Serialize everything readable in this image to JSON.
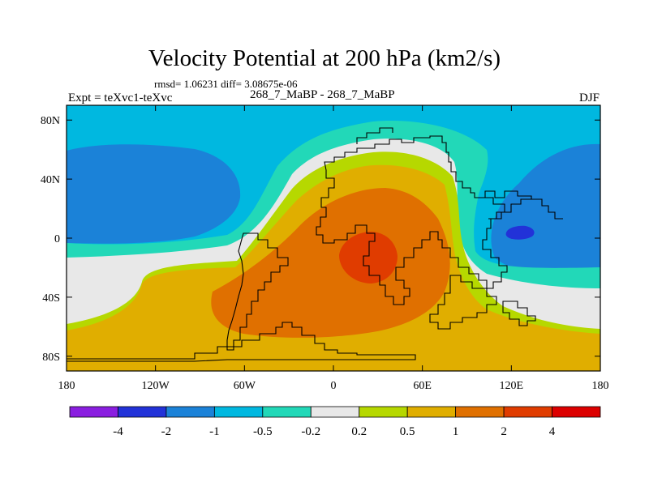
{
  "chart_data": {
    "type": "heatmap",
    "plot_kind": "filled contour map",
    "title": "Velocity Potential at 200 hPa (km2/s)",
    "stats_line": "rmsd= 1.06231 diff= 3.08675e-06",
    "subtitle": "268_7_MaBP - 268_7_MaBP",
    "left_label": "Expt = teXvc1-teXvc",
    "right_label": "DJF",
    "x_range": [
      -180,
      180
    ],
    "y_range": [
      -90,
      90
    ],
    "x_ticks": [
      {
        "value": -180,
        "label": "180"
      },
      {
        "value": -120,
        "label": "120W"
      },
      {
        "value": -60,
        "label": "60W"
      },
      {
        "value": 0,
        "label": "0"
      },
      {
        "value": 60,
        "label": "60E"
      },
      {
        "value": 120,
        "label": "120E"
      },
      {
        "value": 180,
        "label": "180"
      }
    ],
    "y_ticks": [
      {
        "value": 80,
        "label": "80N"
      },
      {
        "value": 40,
        "label": "40N"
      },
      {
        "value": 0,
        "label": "0"
      },
      {
        "value": -40,
        "label": "40S"
      },
      {
        "value": -80,
        "label": "80S"
      }
    ],
    "contour_levels": [
      -4,
      -2,
      -1,
      -0.5,
      -0.2,
      0.2,
      0.5,
      1,
      2,
      4
    ],
    "colorbar_labels": [
      "-4",
      "-2",
      "-1",
      "-0.5",
      "-0.2",
      "0.2",
      "0.5",
      "1",
      "2",
      "4"
    ],
    "colors": [
      "#8a1ee0",
      "#2232d8",
      "#1b82d8",
      "#00b8e0",
      "#22d8b8",
      "#e8e8e8",
      "#b6d800",
      "#e0ae00",
      "#e07000",
      "#e03c00",
      "#dc0000"
    ],
    "features": [
      {
        "name": "positive maximum over Africa",
        "lon": 20,
        "lat": -15,
        "value_range": "2 to 4"
      },
      {
        "name": "negative minimum over Indonesia",
        "lon": 128,
        "lat": 5,
        "value_range": "-4 to -2"
      },
      {
        "name": "negative lobe North Pacific",
        "lon": -150,
        "lat": 45,
        "value_range": "-1 to -0.5"
      },
      {
        "name": "negative lobe Western Pacific",
        "lon": 160,
        "lat": 40,
        "value_range": "-1 to -0.5"
      }
    ],
    "grid": false,
    "legend": "horizontal colorbar below plot"
  }
}
